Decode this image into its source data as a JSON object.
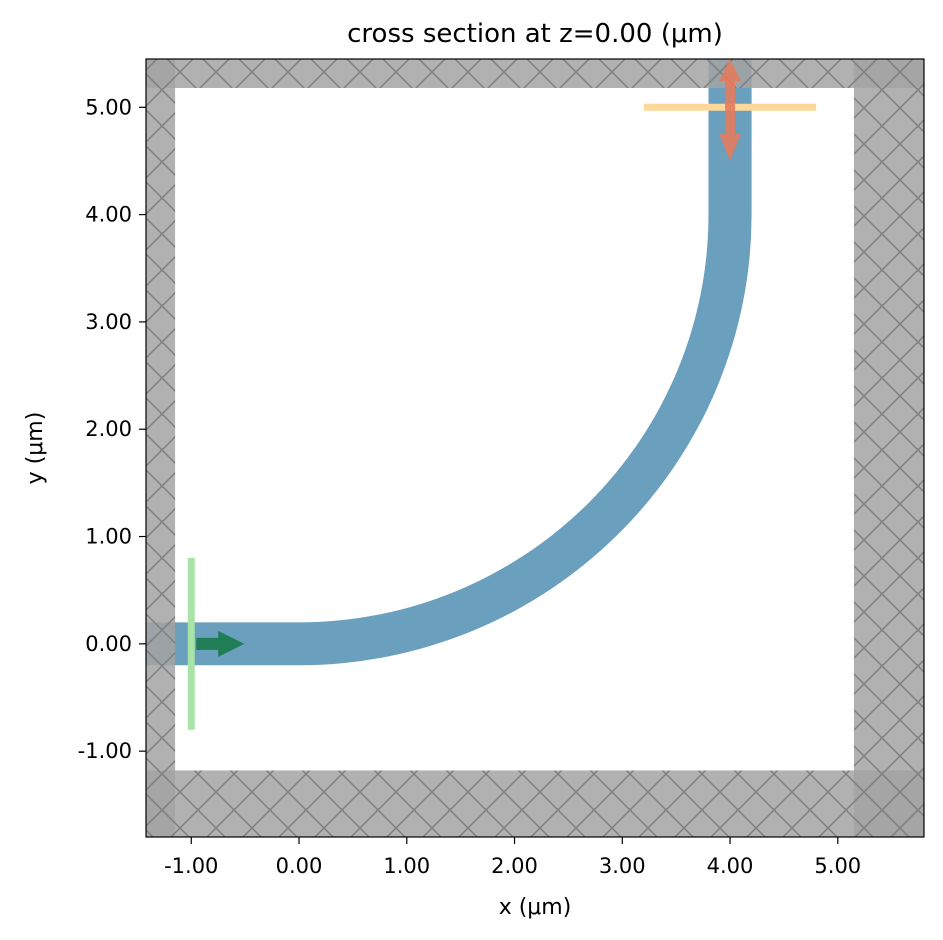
{
  "chart_data": {
    "type": "area",
    "title": "cross section at z=0.00 (μm)",
    "xlabel": "x (μm)",
    "ylabel": "y (μm)",
    "xlim": [
      -1.42,
      5.8
    ],
    "ylim": [
      -1.8,
      5.45
    ],
    "xticks": [
      -1.0,
      0.0,
      1.0,
      2.0,
      3.0,
      4.0,
      5.0
    ],
    "xtick_labels": [
      "-1.00",
      "0.00",
      "1.00",
      "2.00",
      "3.00",
      "4.00",
      "5.00"
    ],
    "yticks": [
      -1.0,
      0.0,
      1.0,
      2.0,
      3.0,
      4.0,
      5.0
    ],
    "ytick_labels": [
      "-1.00",
      "0.00",
      "1.00",
      "2.00",
      "3.00",
      "4.00",
      "5.00"
    ],
    "grid": false,
    "colors": {
      "waveguide": "#6a9fbe",
      "pml": "#a3a3a3",
      "pml_corner": "#8c8c8c",
      "pml_hatch": "#7d7d7d",
      "source": "#a8e4a8",
      "source_arrow": "#187a4a",
      "monitor": "#fdd898",
      "monitor_arrow": "#e47b5d"
    },
    "waveguide": {
      "width": 0.4,
      "straight_in": {
        "x_start": -1.42,
        "x_end": 0.0,
        "y": 0.0
      },
      "bend": {
        "center": [
          0.0,
          4.0
        ],
        "radius_x": 4.0,
        "radius_y": 4.0
      },
      "straight_out": {
        "x": 4.0,
        "y_start": 4.0,
        "y_end": 5.45
      }
    },
    "pml_regions": [
      {
        "name": "left",
        "x": [
          -1.42,
          -1.15
        ],
        "y": [
          -1.8,
          5.45
        ]
      },
      {
        "name": "right",
        "x": [
          5.15,
          5.8
        ],
        "y": [
          -1.8,
          5.45
        ]
      },
      {
        "name": "bottom",
        "x": [
          -1.42,
          5.8
        ],
        "y": [
          -1.8,
          -1.18
        ]
      },
      {
        "name": "top",
        "x": [
          -1.42,
          5.8
        ],
        "y": [
          5.18,
          5.45
        ]
      }
    ],
    "source": {
      "x": -1.0,
      "y_range": [
        -0.8,
        0.8
      ],
      "direction": "+x"
    },
    "monitor": {
      "y": 5.0,
      "x_range": [
        3.2,
        4.8
      ],
      "direction": "both-y"
    }
  }
}
